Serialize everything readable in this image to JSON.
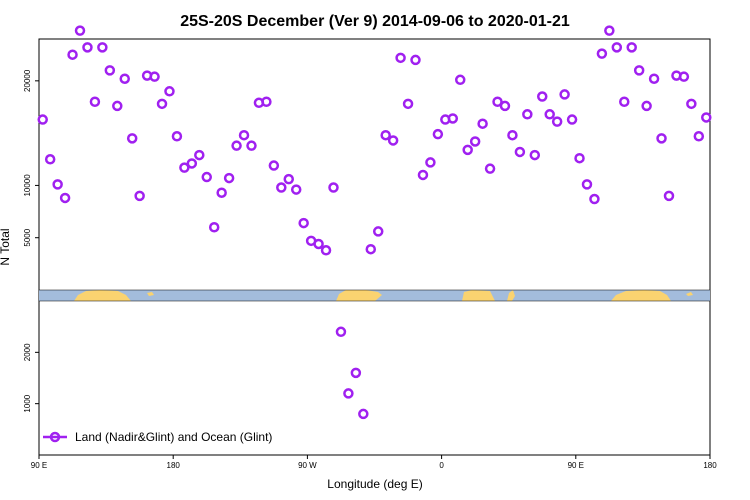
{
  "chart_data": {
    "type": "scatter",
    "title": "25S-20S December (Ver 9)   2014-09-06 to 2020-01-21",
    "xlabel": "Longitude (deg E)",
    "ylabel": "N Total",
    "x_ticks": [
      {
        "value": 0,
        "label": "90 E"
      },
      {
        "value": 90,
        "label": "180"
      },
      {
        "value": 180,
        "label": "90 W"
      },
      {
        "value": 270,
        "label": "0"
      },
      {
        "value": 360,
        "label": "90 E"
      },
      {
        "value": 450,
        "label": "180"
      }
    ],
    "xlim": [
      0,
      450
    ],
    "upper_panel": {
      "ylim": [
        0,
        24000
      ],
      "y_ticks": [
        {
          "value": 5000,
          "label": "5000"
        },
        {
          "value": 10000,
          "label": "10000"
        },
        {
          "value": 20000,
          "label": "20000"
        }
      ]
    },
    "lower_panel": {
      "ylim": [
        0,
        3000
      ],
      "y_ticks": [
        {
          "value": 1000,
          "label": "1000"
        },
        {
          "value": 2000,
          "label": "2000"
        }
      ]
    },
    "split_value": 3000,
    "legend": {
      "label": "Land (Nadir&Glint) and Ocean (Glint)",
      "position": "bottom-left"
    },
    "series_color": "#a020f0",
    "map_strip": {
      "ocean_color": "#a3bcdc",
      "land_color": "#fad370"
    },
    "series": [
      {
        "x": [
          2.5,
          7.5,
          12.5,
          17.5,
          22.5,
          27.5,
          32.5,
          37.5,
          42.5,
          47.5,
          52.5,
          57.5,
          62.5,
          67.5,
          72.5,
          77.5,
          82.5,
          87.5,
          92.5,
          97.5,
          102.5,
          107.5,
          112.5,
          117.5,
          122.5,
          127.5,
          132.5,
          137.5,
          142.5,
          147.5,
          152.5,
          157.5,
          162.5,
          167.5,
          172.5,
          177.5,
          182.5,
          187.5,
          192.5,
          197.5,
          202.5,
          207.5,
          212.5,
          217.5,
          222.5,
          227.5,
          232.5,
          237.5,
          242.5,
          247.5,
          252.5,
          257.5,
          262.5,
          267.5,
          272.5,
          277.5,
          282.5,
          287.5,
          292.5,
          297.5,
          302.5,
          307.5,
          312.5,
          317.5,
          322.5,
          327.5,
          332.5,
          337.5,
          342.5,
          347.5,
          352.5,
          357.5,
          362.5,
          367.5,
          372.5,
          377.5,
          382.5,
          387.5,
          392.5,
          397.5,
          402.5,
          407.5,
          412.5,
          417.5,
          422.5,
          427.5,
          432.5,
          437.5,
          442.5,
          447.5
        ],
        "y": [
          16300,
          12500,
          10100,
          8800,
          22500,
          24800,
          23200,
          18000,
          23200,
          21000,
          17600,
          20200,
          14500,
          9000,
          20500,
          20400,
          17800,
          19000,
          14700,
          11700,
          12100,
          12900,
          10800,
          6000,
          9300,
          10700,
          13800,
          14800,
          13800,
          17900,
          18000,
          11900,
          9800,
          10600,
          9600,
          6400,
          4700,
          4400,
          3800,
          9800,
          2400,
          1200,
          1600,
          800,
          3900,
          5600,
          14800,
          14300,
          22200,
          17800,
          22000,
          11000,
          12200,
          14900,
          16300,
          16400,
          20100,
          13400,
          14200,
          15900,
          11600,
          18000,
          17600,
          14800,
          13200,
          16800,
          12900,
          18500,
          16800,
          16100,
          18700,
          16300,
          12600,
          10100,
          8700,
          22600,
          24800,
          23200,
          18000,
          23200,
          21000,
          17600,
          20200,
          14500,
          9000,
          20500,
          20400,
          17800,
          14700,
          16500
        ]
      }
    ]
  }
}
